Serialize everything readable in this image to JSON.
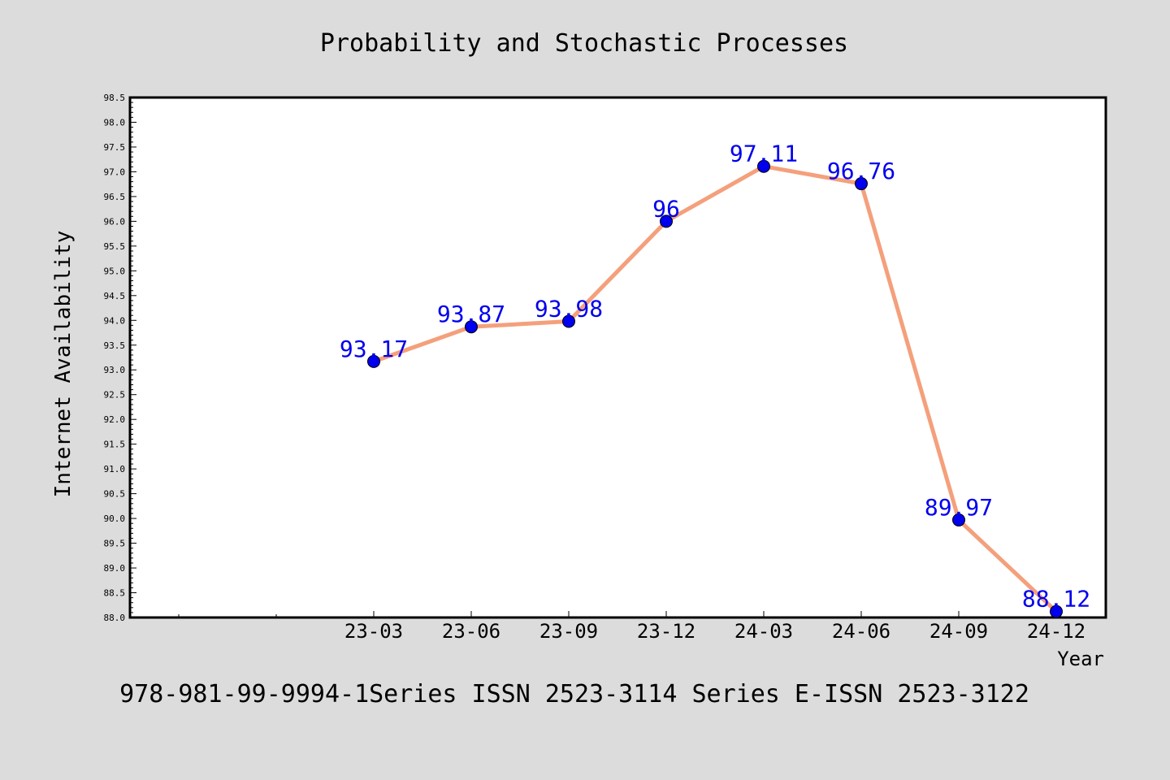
{
  "chart_data": {
    "type": "line",
    "title": "Probability and Stochastic Processes",
    "xlabel": "Year",
    "ylabel": "Internet Availability",
    "categories": [
      "23-03",
      "23-06",
      "23-09",
      "23-12",
      "24-03",
      "24-06",
      "24-09",
      "24-12"
    ],
    "series": [
      {
        "values": [
          93.17,
          93.87,
          93.98,
          96,
          97.11,
          96.76,
          89.97,
          88.12
        ],
        "labels": [
          "93.17",
          "93.87",
          "93.98",
          "96",
          "97.11",
          "96.76",
          "89.97",
          "88.12"
        ]
      }
    ],
    "ylim": [
      88.0,
      98.5
    ],
    "yticks": [
      "88.0",
      "88.5",
      "89.0",
      "89.5",
      "90.0",
      "90.5",
      "91.0",
      "91.5",
      "92.0",
      "92.5",
      "93.0",
      "93.5",
      "94.0",
      "94.5",
      "95.0",
      "95.5",
      "96.0",
      "96.5",
      "97.0",
      "97.5",
      "98.0",
      "98.5"
    ],
    "grid": false,
    "line_color": "#f4a07c",
    "marker_color": "#0000ee",
    "label_color": "#0000ee",
    "background": "#dcdcdc",
    "plot_background": "#ffffff"
  },
  "footer": "978-981-99-9994-1Series ISSN 2523-3114 Series E-ISSN 2523-3122"
}
